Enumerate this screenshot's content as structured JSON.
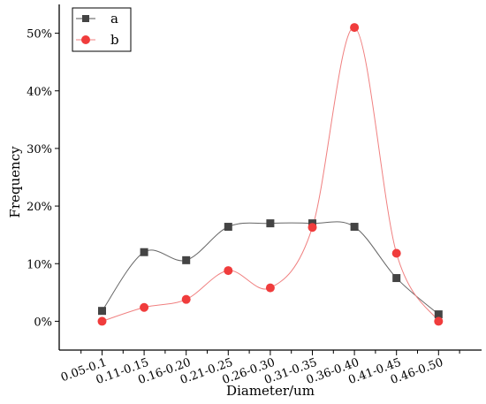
{
  "chart_data": {
    "type": "line",
    "xlabel": "Diameter/um",
    "ylabel": "Frequency",
    "categories": [
      "0.05-0.1",
      "0.11-0.15",
      "0.16-0.20",
      "0.21-0.25",
      "0.26-0.30",
      "0.31-0.35",
      "0.36-0.40",
      "0.41-0.45",
      "0.46-0.50"
    ],
    "yticks": [
      "0%",
      "10%",
      "20%",
      "30%",
      "40%",
      "50%"
    ],
    "ylim": [
      -0.05,
      0.55
    ],
    "grid": false,
    "legend_position": "top-left",
    "series": [
      {
        "name": "a",
        "color": "#555555",
        "marker": "square",
        "values": [
          0.018,
          0.12,
          0.106,
          0.164,
          0.17,
          0.17,
          0.164,
          0.075,
          0.012
        ]
      },
      {
        "name": "b",
        "color": "#f03c3c",
        "marker": "circle",
        "values": [
          0.0,
          0.024,
          0.038,
          0.088,
          0.058,
          0.163,
          0.51,
          0.118,
          0.0
        ]
      }
    ]
  }
}
